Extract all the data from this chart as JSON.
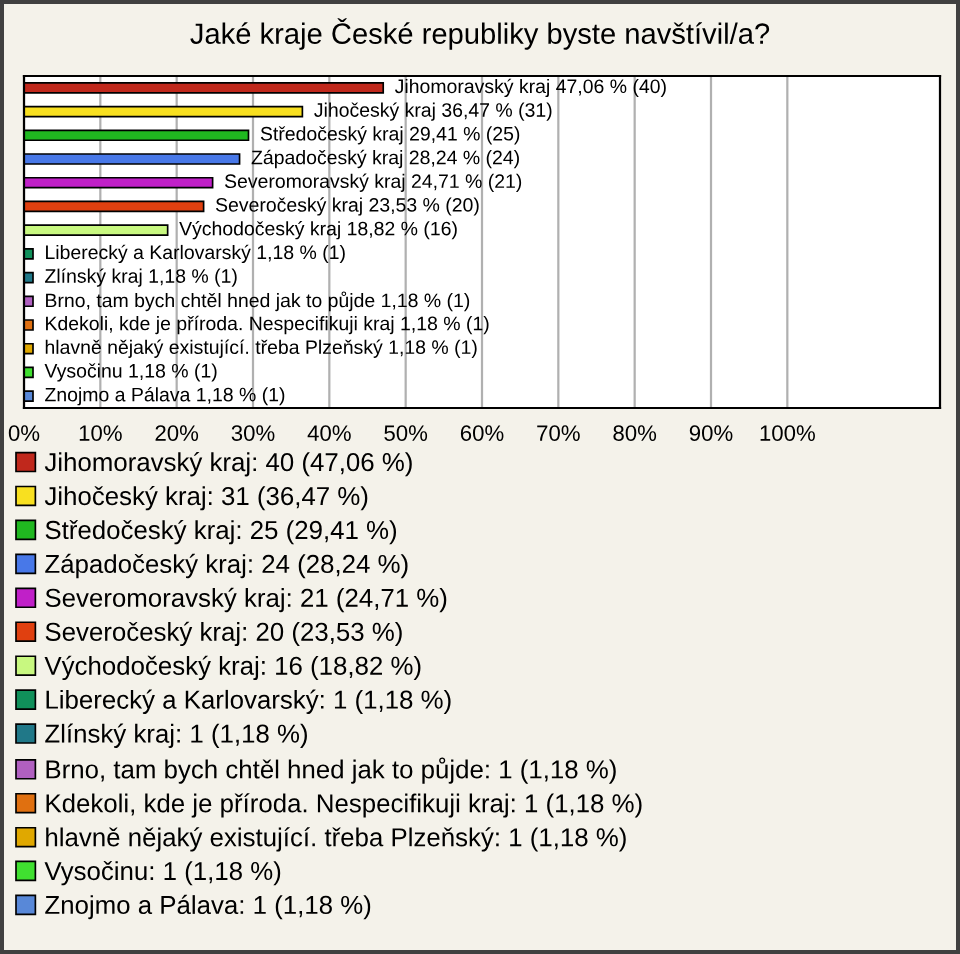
{
  "chart_data": {
    "type": "bar",
    "orientation": "horizontal",
    "title": "Jaké kraje České republiky byste navštívil/a?",
    "categories": [
      null,
      null,
      null,
      null,
      null,
      null,
      null,
      null,
      null,
      null,
      null,
      null,
      null,
      null
    ],
    "series": [
      {
        "name": "Jihomoravský kraj: 40 (47,06 %)",
        "color": "#c0281c",
        "values": [
          47.06,
          null,
          null,
          null,
          null,
          null,
          null,
          null,
          null,
          null,
          null,
          null,
          null,
          null
        ],
        "value_labels": [
          "Jihomoravský kraj 47,06 % (40)",
          null,
          null,
          null,
          null,
          null,
          null,
          null,
          null,
          null,
          null,
          null,
          null,
          null
        ]
      },
      {
        "name": "Jihočeský kraj: 31 (36,47 %)",
        "color": "#f8e020",
        "values": [
          null,
          36.47,
          null,
          null,
          null,
          null,
          null,
          null,
          null,
          null,
          null,
          null,
          null,
          null
        ],
        "value_labels": [
          null,
          "Jihočeský kraj 36,47 % (31)",
          null,
          null,
          null,
          null,
          null,
          null,
          null,
          null,
          null,
          null,
          null,
          null
        ]
      },
      {
        "name": "Středočeský kraj: 25 (29,41 %)",
        "color": "#20b820",
        "values": [
          null,
          null,
          29.41,
          null,
          null,
          null,
          null,
          null,
          null,
          null,
          null,
          null,
          null,
          null
        ],
        "value_labels": [
          null,
          null,
          "Středočeský kraj 29,41 % (25)",
          null,
          null,
          null,
          null,
          null,
          null,
          null,
          null,
          null,
          null,
          null
        ]
      },
      {
        "name": "Západočeský kraj: 24 (28,24 %)",
        "color": "#4878e8",
        "values": [
          null,
          null,
          null,
          28.24,
          null,
          null,
          null,
          null,
          null,
          null,
          null,
          null,
          null,
          null
        ],
        "value_labels": [
          null,
          null,
          null,
          "Západočeský kraj 28,24 % (24)",
          null,
          null,
          null,
          null,
          null,
          null,
          null,
          null,
          null,
          null
        ]
      },
      {
        "name": "Severomoravský kraj: 21 (24,71 %)",
        "color": "#c020c8",
        "values": [
          null,
          null,
          null,
          null,
          24.71,
          null,
          null,
          null,
          null,
          null,
          null,
          null,
          null,
          null
        ],
        "value_labels": [
          null,
          null,
          null,
          null,
          "Severomoravský kraj 24,71 % (21)",
          null,
          null,
          null,
          null,
          null,
          null,
          null,
          null,
          null
        ]
      },
      {
        "name": "Severočeský kraj: 20 (23,53 %)",
        "color": "#e04010",
        "values": [
          null,
          null,
          null,
          null,
          null,
          23.53,
          null,
          null,
          null,
          null,
          null,
          null,
          null,
          null
        ],
        "value_labels": [
          null,
          null,
          null,
          null,
          null,
          "Severočeský kraj 23,53 % (20)",
          null,
          null,
          null,
          null,
          null,
          null,
          null,
          null
        ]
      },
      {
        "name": "Východočeský kraj: 16 (18,82 %)",
        "color": "#c8f880",
        "values": [
          null,
          null,
          null,
          null,
          null,
          null,
          18.82,
          null,
          null,
          null,
          null,
          null,
          null,
          null
        ],
        "value_labels": [
          null,
          null,
          null,
          null,
          null,
          null,
          "Východočeský kraj 18,82 % (16)",
          null,
          null,
          null,
          null,
          null,
          null,
          null
        ]
      },
      {
        "name": "Liberecký a Karlovarský: 1 (1,18 %)",
        "color": "#10905a",
        "values": [
          null,
          null,
          null,
          null,
          null,
          null,
          null,
          1.18,
          null,
          null,
          null,
          null,
          null,
          null
        ],
        "value_labels": [
          null,
          null,
          null,
          null,
          null,
          null,
          null,
          "Liberecký a Karlovarský 1,18 % (1)",
          null,
          null,
          null,
          null,
          null,
          null
        ]
      },
      {
        "name": "Zlínský kraj: 1 (1,18 %)",
        "color": "#207888",
        "values": [
          null,
          null,
          null,
          null,
          null,
          null,
          null,
          null,
          1.18,
          null,
          null,
          null,
          null,
          null
        ],
        "value_labels": [
          null,
          null,
          null,
          null,
          null,
          null,
          null,
          null,
          "Zlínský kraj 1,18 % (1)",
          null,
          null,
          null,
          null,
          null
        ]
      },
      {
        "name": "Brno, tam bych chtěl hned jak to půjde: 1 (1,18 %)",
        "color": "#b060c0",
        "values": [
          null,
          null,
          null,
          null,
          null,
          null,
          null,
          null,
          null,
          1.18,
          null,
          null,
          null,
          null
        ],
        "value_labels": [
          null,
          null,
          null,
          null,
          null,
          null,
          null,
          null,
          null,
          "Brno, tam bych chtěl hned jak to půjde 1,18 % (1)",
          null,
          null,
          null,
          null
        ]
      },
      {
        "name": "Kdekoli, kde je příroda. Nespecifikuji kraj: 1 (1,18 %)",
        "color": "#e07010",
        "values": [
          null,
          null,
          null,
          null,
          null,
          null,
          null,
          null,
          null,
          null,
          1.18,
          null,
          null,
          null
        ],
        "value_labels": [
          null,
          null,
          null,
          null,
          null,
          null,
          null,
          null,
          null,
          null,
          "Kdekoli, kde je příroda. Nespecifikuji kraj 1,18 % (1)",
          null,
          null,
          null
        ]
      },
      {
        "name": "hlavně nějaký existující. třeba Plzeňský: 1 (1,18 %)",
        "color": "#e0a800",
        "values": [
          null,
          null,
          null,
          null,
          null,
          null,
          null,
          null,
          null,
          null,
          null,
          1.18,
          null,
          null
        ],
        "value_labels": [
          null,
          null,
          null,
          null,
          null,
          null,
          null,
          null,
          null,
          null,
          null,
          "hlavně nějaký existující. třeba Plzeňský 1,18 % (1)",
          null,
          null
        ]
      },
      {
        "name": "Vysočinu: 1 (1,18 %)",
        "color": "#40e030",
        "values": [
          null,
          null,
          null,
          null,
          null,
          null,
          null,
          null,
          null,
          null,
          null,
          null,
          1.18,
          null
        ],
        "value_labels": [
          null,
          null,
          null,
          null,
          null,
          null,
          null,
          null,
          null,
          null,
          null,
          null,
          "Vysočinu 1,18 % (1)",
          null
        ]
      },
      {
        "name": "Znojmo a Pálava: 1 (1,18 %)",
        "color": "#5888d8",
        "values": [
          null,
          null,
          null,
          null,
          null,
          null,
          null,
          null,
          null,
          null,
          null,
          null,
          null,
          1.18
        ],
        "value_labels": [
          null,
          null,
          null,
          null,
          null,
          null,
          null,
          null,
          null,
          null,
          null,
          null,
          null,
          "Znojmo a Pálava 1,18 % (1)"
        ]
      }
    ],
    "xlim": [
      0,
      120
    ],
    "xticks": [
      {
        "value": 0,
        "label": "0%"
      },
      {
        "value": 10,
        "label": "10%"
      },
      {
        "value": 20,
        "label": "20%"
      },
      {
        "value": 30,
        "label": "30%"
      },
      {
        "value": 40,
        "label": "40%"
      },
      {
        "value": 50,
        "label": "50%"
      },
      {
        "value": 60,
        "label": "60%"
      },
      {
        "value": 70,
        "label": "70%"
      },
      {
        "value": 80,
        "label": "80%"
      },
      {
        "value": 90,
        "label": "90%"
      },
      {
        "value": 100,
        "label": "100%"
      }
    ],
    "grid": "x",
    "legend": "bottom"
  }
}
